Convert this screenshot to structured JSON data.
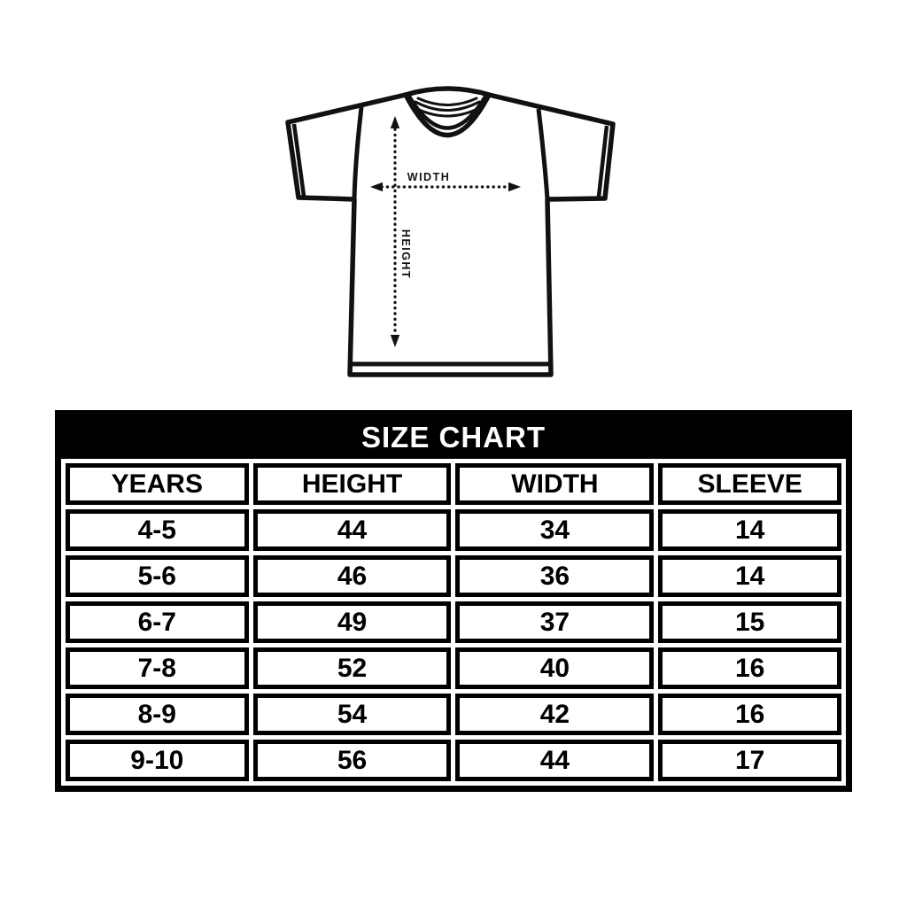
{
  "diagram": {
    "width_label": "WIDTH",
    "height_label": "HEIGHT"
  },
  "chart_data": {
    "type": "table",
    "title": "SIZE CHART",
    "columns": [
      "YEARS",
      "HEIGHT",
      "WIDTH",
      "SLEEVE"
    ],
    "rows": [
      [
        "4-5",
        "44",
        "34",
        "14"
      ],
      [
        "5-6",
        "46",
        "36",
        "14"
      ],
      [
        "6-7",
        "49",
        "37",
        "15"
      ],
      [
        "7-8",
        "52",
        "40",
        "16"
      ],
      [
        "8-9",
        "54",
        "42",
        "16"
      ],
      [
        "9-10",
        "56",
        "44",
        "17"
      ]
    ]
  },
  "colors": {
    "line": "#111111",
    "table_border": "#000000",
    "title_bg": "#000000",
    "title_text": "#ffffff",
    "cell_bg": "#ffffff",
    "cell_text": "#000000",
    "background": "#ffffff"
  }
}
